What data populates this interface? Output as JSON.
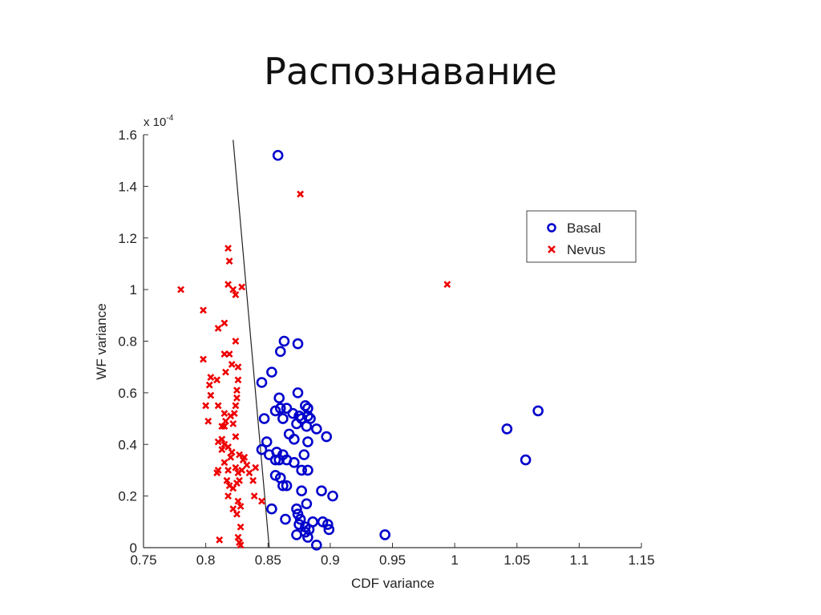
{
  "slide": {
    "title": "Распознавание"
  },
  "chart_data": {
    "type": "scatter",
    "xlabel": "CDF variance",
    "ylabel": "WF variance",
    "y_multiplier": "x 10",
    "y_multiplier_exp": "-4",
    "xlim": [
      0.75,
      1.15
    ],
    "ylim": [
      0,
      1.6
    ],
    "xticks": [
      "0.75",
      "0.8",
      "0.85",
      "0.9",
      "0.95",
      "1",
      "1.05",
      "1.1",
      "1.15"
    ],
    "yticks": [
      "0",
      "0.2",
      "0.4",
      "0.6",
      "0.8",
      "1",
      "1.2",
      "1.4",
      "1.6"
    ],
    "grid": false,
    "legend": "top-right",
    "decision_line": [
      [
        0.822,
        1.58
      ],
      [
        0.851,
        0
      ]
    ],
    "series": [
      {
        "name": "Basal",
        "marker": "circle",
        "color": "#0000cc",
        "points": [
          [
            0.858,
            1.52
          ],
          [
            0.863,
            0.8
          ],
          [
            0.86,
            0.76
          ],
          [
            0.874,
            0.79
          ],
          [
            0.853,
            0.68
          ],
          [
            0.845,
            0.64
          ],
          [
            0.859,
            0.58
          ],
          [
            0.865,
            0.54
          ],
          [
            0.874,
            0.6
          ],
          [
            0.86,
            0.54
          ],
          [
            0.856,
            0.53
          ],
          [
            0.87,
            0.52
          ],
          [
            0.88,
            0.55
          ],
          [
            0.882,
            0.54
          ],
          [
            0.875,
            0.51
          ],
          [
            0.877,
            0.5
          ],
          [
            0.873,
            0.48
          ],
          [
            0.882,
            0.51
          ],
          [
            0.884,
            0.5
          ],
          [
            0.862,
            0.5
          ],
          [
            0.847,
            0.5
          ],
          [
            0.867,
            0.44
          ],
          [
            0.881,
            0.47
          ],
          [
            0.889,
            0.46
          ],
          [
            0.897,
            0.43
          ],
          [
            0.871,
            0.42
          ],
          [
            0.882,
            0.41
          ],
          [
            0.879,
            0.36
          ],
          [
            0.849,
            0.41
          ],
          [
            0.851,
            0.36
          ],
          [
            0.862,
            0.36
          ],
          [
            0.856,
            0.34
          ],
          [
            0.859,
            0.34
          ],
          [
            0.865,
            0.34
          ],
          [
            0.845,
            0.38
          ],
          [
            0.857,
            0.37
          ],
          [
            0.871,
            0.33
          ],
          [
            0.877,
            0.3
          ],
          [
            0.882,
            0.3
          ],
          [
            0.856,
            0.28
          ],
          [
            0.86,
            0.27
          ],
          [
            0.862,
            0.24
          ],
          [
            0.865,
            0.24
          ],
          [
            0.877,
            0.22
          ],
          [
            0.893,
            0.22
          ],
          [
            0.902,
            0.2
          ],
          [
            0.881,
            0.17
          ],
          [
            0.873,
            0.15
          ],
          [
            0.874,
            0.13
          ],
          [
            0.853,
            0.15
          ],
          [
            0.864,
            0.11
          ],
          [
            0.876,
            0.11
          ],
          [
            0.875,
            0.09
          ],
          [
            0.88,
            0.08
          ],
          [
            0.883,
            0.07
          ],
          [
            0.886,
            0.1
          ],
          [
            0.894,
            0.1
          ],
          [
            0.898,
            0.09
          ],
          [
            0.899,
            0.07
          ],
          [
            0.88,
            0.06
          ],
          [
            0.873,
            0.05
          ],
          [
            0.882,
            0.04
          ],
          [
            0.889,
            0.01
          ],
          [
            0.944,
            0.05
          ],
          [
            1.042,
            0.46
          ],
          [
            1.067,
            0.53
          ],
          [
            1.057,
            0.34
          ]
        ]
      },
      {
        "name": "Nevus",
        "marker": "x",
        "color": "#ee0000",
        "points": [
          [
            0.876,
            1.37
          ],
          [
            0.994,
            1.02
          ],
          [
            0.78,
            1.0
          ],
          [
            0.818,
            1.16
          ],
          [
            0.819,
            1.11
          ],
          [
            0.818,
            1.02
          ],
          [
            0.822,
            1.0
          ],
          [
            0.824,
            0.98
          ],
          [
            0.829,
            1.01
          ],
          [
            0.798,
            0.92
          ],
          [
            0.815,
            0.87
          ],
          [
            0.81,
            0.85
          ],
          [
            0.824,
            0.8
          ],
          [
            0.798,
            0.73
          ],
          [
            0.804,
            0.66
          ],
          [
            0.809,
            0.65
          ],
          [
            0.815,
            0.75
          ],
          [
            0.819,
            0.75
          ],
          [
            0.821,
            0.71
          ],
          [
            0.803,
            0.63
          ],
          [
            0.826,
            0.7
          ],
          [
            0.816,
            0.68
          ],
          [
            0.804,
            0.59
          ],
          [
            0.826,
            0.65
          ],
          [
            0.825,
            0.61
          ],
          [
            0.825,
            0.58
          ],
          [
            0.824,
            0.55
          ],
          [
            0.823,
            0.52
          ],
          [
            0.8,
            0.55
          ],
          [
            0.81,
            0.55
          ],
          [
            0.815,
            0.52
          ],
          [
            0.82,
            0.51
          ],
          [
            0.815,
            0.47
          ],
          [
            0.813,
            0.47
          ],
          [
            0.81,
            0.41
          ],
          [
            0.813,
            0.42
          ],
          [
            0.824,
            0.43
          ],
          [
            0.815,
            0.4
          ],
          [
            0.818,
            0.39
          ],
          [
            0.821,
            0.37
          ],
          [
            0.813,
            0.38
          ],
          [
            0.82,
            0.35
          ],
          [
            0.827,
            0.36
          ],
          [
            0.831,
            0.35
          ],
          [
            0.815,
            0.33
          ],
          [
            0.818,
            0.3
          ],
          [
            0.83,
            0.34
          ],
          [
            0.824,
            0.31
          ],
          [
            0.81,
            0.3
          ],
          [
            0.826,
            0.29
          ],
          [
            0.817,
            0.26
          ],
          [
            0.819,
            0.24
          ],
          [
            0.827,
            0.26
          ],
          [
            0.835,
            0.29
          ],
          [
            0.829,
            0.3
          ],
          [
            0.838,
            0.26
          ],
          [
            0.822,
            0.23
          ],
          [
            0.809,
            0.29
          ],
          [
            0.818,
            0.2
          ],
          [
            0.826,
            0.18
          ],
          [
            0.822,
            0.15
          ],
          [
            0.828,
            0.16
          ],
          [
            0.839,
            0.2
          ],
          [
            0.845,
            0.18
          ],
          [
            0.825,
            0.13
          ],
          [
            0.828,
            0.08
          ],
          [
            0.811,
            0.03
          ],
          [
            0.826,
            0.04
          ],
          [
            0.827,
            0.02
          ],
          [
            0.828,
            0.01
          ],
          [
            0.802,
            0.49
          ],
          [
            0.816,
            0.49
          ],
          [
            0.822,
            0.48
          ],
          [
            0.833,
            0.32
          ],
          [
            0.84,
            0.31
          ],
          [
            0.825,
            0.25
          ]
        ]
      }
    ]
  }
}
